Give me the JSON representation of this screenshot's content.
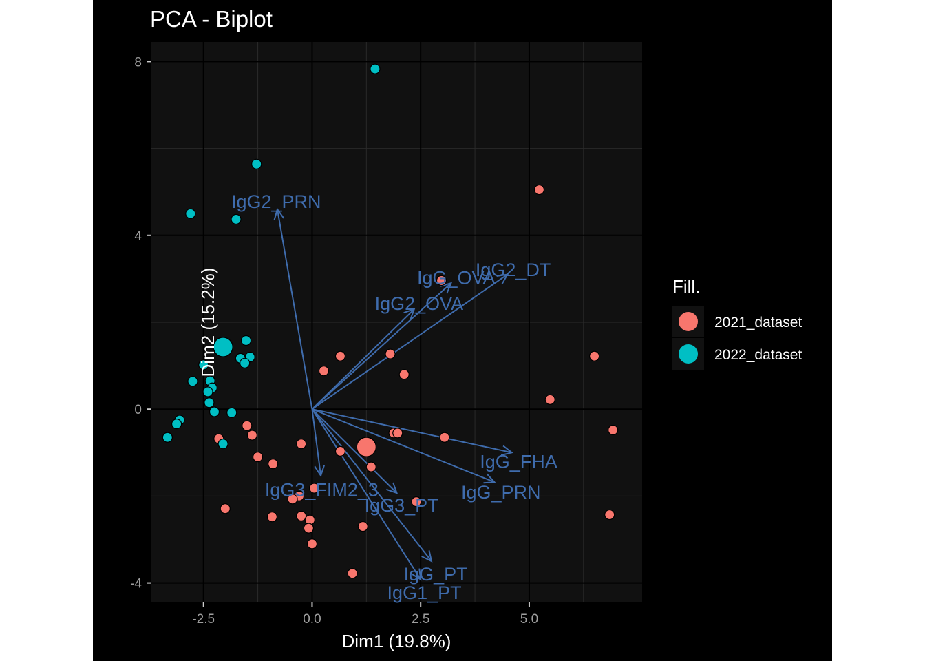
{
  "chart_data": {
    "type": "scatter",
    "title": "PCA - Biplot",
    "xlabel": "Dim1 (19.8%)",
    "ylabel": "Dim2 (15.2%)",
    "xlim": [
      -3.7,
      7.6
    ],
    "ylim": [
      -4.45,
      8.45
    ],
    "x_ticks": [
      -2.5,
      0.0,
      2.5,
      5.0
    ],
    "x_tick_labels": [
      "-2.5",
      "0.0",
      "2.5",
      "5.0"
    ],
    "y_ticks": [
      -4,
      0,
      4,
      8
    ],
    "y_tick_labels": [
      "-4",
      "0",
      "4",
      "8"
    ],
    "grid": true,
    "legend": {
      "title": "Fill.",
      "position": "right",
      "entries": [
        {
          "label": "2021_dataset",
          "color": "#F8766D"
        },
        {
          "label": "2022_dataset",
          "color": "#00BFC4"
        }
      ]
    },
    "series": [
      {
        "name": "2021_dataset",
        "color": "#F8766D",
        "x": [
          5.23,
          2.98,
          6.5,
          5.48,
          6.93,
          1.8,
          0.65,
          0.27,
          2.12,
          3.05,
          1.88,
          1.97,
          -1.38,
          -1.5,
          -2.15,
          -1.25,
          -0.25,
          0.65,
          1.36,
          -0.9,
          0.05,
          2.4,
          -0.3,
          -0.45,
          -2.0,
          -0.92,
          -0.25,
          -0.05,
          1.17,
          -0.08,
          0.0,
          0.93,
          6.85
        ],
        "y": [
          5.05,
          2.96,
          1.22,
          0.22,
          -0.48,
          1.27,
          1.22,
          0.88,
          0.8,
          -0.65,
          -0.55,
          -0.55,
          -0.6,
          -0.38,
          -0.68,
          -1.1,
          -0.8,
          -0.97,
          -1.33,
          -1.26,
          -1.82,
          -2.13,
          -2.0,
          -2.07,
          -2.29,
          -2.48,
          -2.46,
          -2.55,
          -2.7,
          -2.74,
          -3.1,
          -3.78,
          -2.43
        ]
      },
      {
        "name": "2022_dataset",
        "color": "#00BFC4",
        "x": [
          1.45,
          -1.28,
          -2.8,
          -1.75,
          -1.52,
          -1.43,
          -1.65,
          -1.55,
          -2.5,
          -2.75,
          -2.35,
          -2.3,
          -2.4,
          -2.37,
          -2.25,
          -1.85,
          -3.05,
          -3.12,
          -3.33,
          -2.05
        ],
        "y": [
          7.83,
          5.64,
          4.5,
          4.37,
          1.58,
          1.2,
          1.17,
          1.06,
          1.02,
          0.64,
          0.65,
          0.49,
          0.4,
          0.15,
          -0.06,
          -0.08,
          -0.25,
          -0.34,
          -0.65,
          -0.8
        ]
      }
    ],
    "centroids": [
      {
        "group": "2021_dataset",
        "x": 1.25,
        "y": -0.87
      },
      {
        "group": "2022_dataset",
        "x": -2.05,
        "y": 1.43
      }
    ],
    "variables": [
      {
        "label": "IgG2_PRN",
        "x": -0.8,
        "y": 4.6
      },
      {
        "label": "IgG2_DT",
        "x": 4.5,
        "y": 3.1
      },
      {
        "label": "IgG_OVA",
        "x": 3.2,
        "y": 2.9
      },
      {
        "label": "IgG2_OVA",
        "x": 2.35,
        "y": 2.3
      },
      {
        "label": "IgG_FHA",
        "x": 4.6,
        "y": -1.0
      },
      {
        "label": "IgG_PRN",
        "x": 4.2,
        "y": -1.68
      },
      {
        "label": "IgG3_FIM2_3",
        "x": 0.2,
        "y": -1.53
      },
      {
        "label": "IgG3_PT",
        "x": 1.95,
        "y": -1.93
      },
      {
        "label": "IgG_PT",
        "x": 2.75,
        "y": -3.5
      },
      {
        "label": "IgG1_PT",
        "x": 2.5,
        "y": -3.92
      }
    ],
    "variable_color": "#3F6CAD"
  }
}
